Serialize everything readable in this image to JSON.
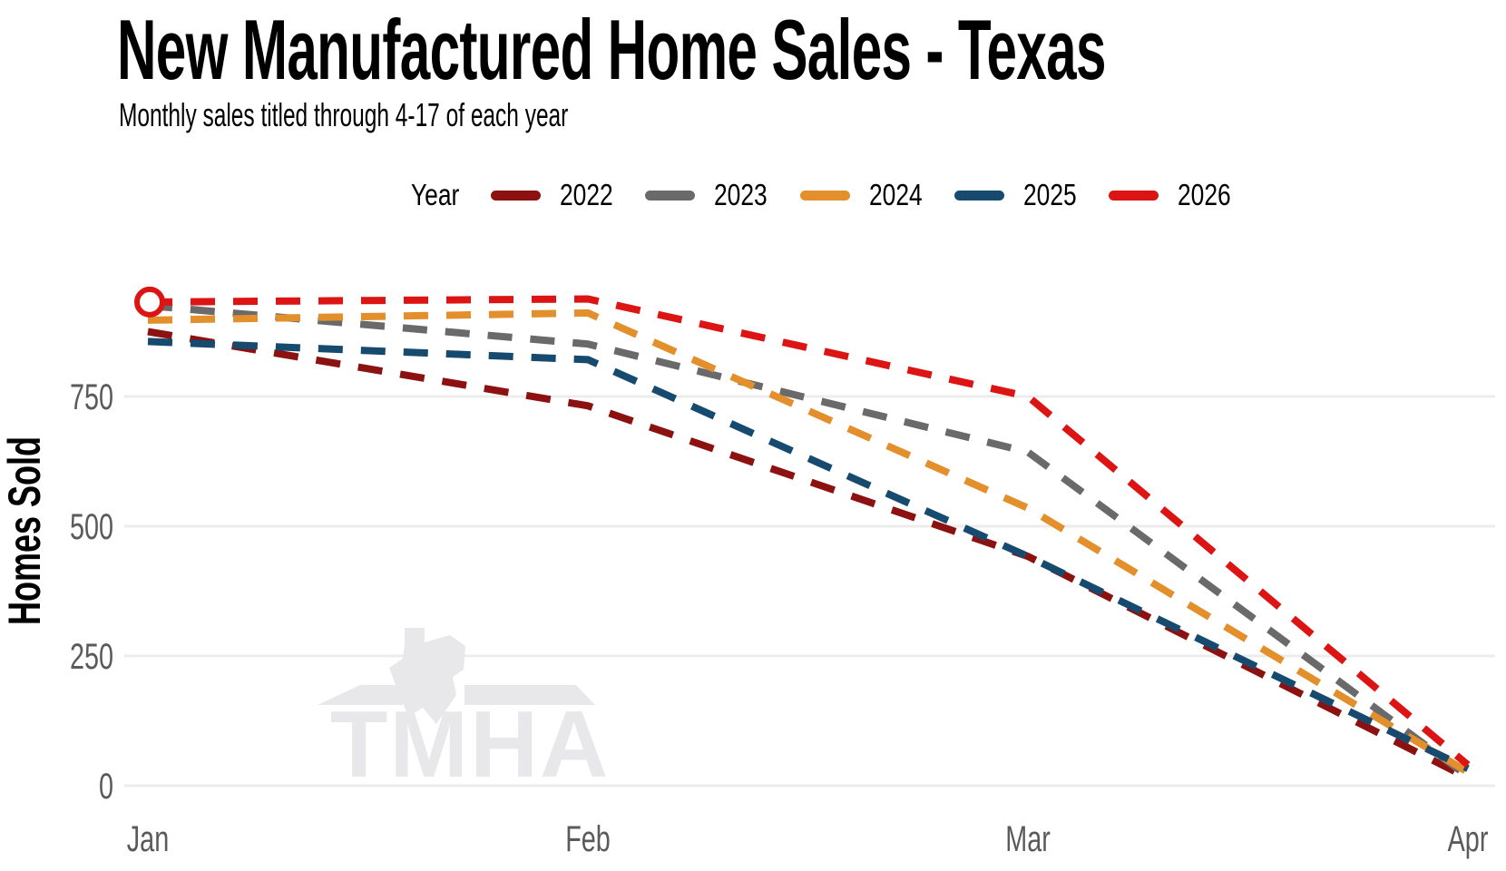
{
  "header": {
    "title": "New Manufactured Home Sales - Texas",
    "subtitle": "Monthly sales titled through 4-17 of each year"
  },
  "legend": {
    "label": "Year"
  },
  "watermark": {
    "text": "TMHA"
  },
  "chart_data": {
    "type": "line",
    "title": "New Manufactured Home Sales - Texas",
    "subtitle": "Monthly sales titled through 4-17 of each year",
    "xlabel": "",
    "ylabel": "Homes Sold",
    "categories": [
      "Jan",
      "Feb",
      "Mar",
      "Apr"
    ],
    "yticks": [
      0,
      250,
      500,
      750
    ],
    "ylim": [
      0,
      1000
    ],
    "grid": true,
    "line_style": "dashed",
    "legend_title": "Year",
    "legend_position": "top",
    "series": [
      {
        "name": "2022",
        "color": "#8C1211",
        "values": [
          875,
          732,
          442,
          15
        ]
      },
      {
        "name": "2023",
        "color": "#6A6A6A",
        "values": [
          925,
          851,
          643,
          18
        ]
      },
      {
        "name": "2024",
        "color": "#E28F2C",
        "values": [
          897,
          911,
          535,
          26
        ]
      },
      {
        "name": "2025",
        "color": "#164A6E",
        "values": [
          856,
          821,
          442,
          33
        ]
      },
      {
        "name": "2026",
        "color": "#DC1414",
        "values": [
          932,
          938,
          750,
          40
        ]
      }
    ],
    "marker": {
      "series": "2026",
      "category": "Jan",
      "shape": "open-circle",
      "color": "#DC1414"
    },
    "axis_color": "#5A5A5A",
    "grid_color": "#ECECEC"
  }
}
